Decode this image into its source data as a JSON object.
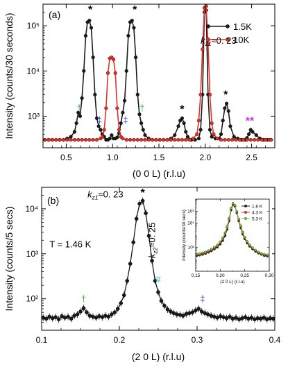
{
  "colors": {
    "black_series": "#1a1a1a",
    "red_series": "#e8312a",
    "green_series": "#7fd04a",
    "dagger_green": "#3cb44b",
    "dagger_blue": "#2b4fd8",
    "star_magenta": "#c23bd8",
    "hash_cyan": "#2ec4c4"
  },
  "chart_data": [
    {
      "type": "line",
      "panel_label": "(a)",
      "xlabel": "(0 0 L) (r.l.u)",
      "ylabel": "Intensity (counts/30 seconds)",
      "xlim": [
        0.25,
        2.75
      ],
      "ylim": [
        200,
        300000
      ],
      "yscale": "log",
      "xticks": [
        0.5,
        1.0,
        1.5,
        2.0,
        2.5
      ],
      "xtick_labels": [
        "0.5",
        "1.0",
        "1.5",
        "2.0",
        "2.5"
      ],
      "yticks": [
        1000,
        10000,
        100000
      ],
      "ytick_labels": [
        "10³",
        "10⁴",
        "10⁵"
      ],
      "legend_position": "top-right",
      "legend": [
        "1.5K",
        "10K"
      ],
      "series": [
        {
          "name": "1.5K",
          "color": "#1a1a1a",
          "x": [
            0.27,
            0.31,
            0.35,
            0.39,
            0.43,
            0.47,
            0.51,
            0.55,
            0.59,
            0.61,
            0.63,
            0.65,
            0.67,
            0.69,
            0.71,
            0.73,
            0.75,
            0.77,
            0.79,
            0.81,
            0.83,
            0.85,
            0.87,
            0.89,
            0.91,
            0.93,
            0.95,
            0.97,
            0.99,
            1.01,
            1.03,
            1.05,
            1.07,
            1.09,
            1.11,
            1.13,
            1.15,
            1.17,
            1.19,
            1.21,
            1.23,
            1.25,
            1.27,
            1.29,
            1.31,
            1.33,
            1.35,
            1.39,
            1.43,
            1.47,
            1.51,
            1.55,
            1.59,
            1.63,
            1.67,
            1.71,
            1.73,
            1.75,
            1.77,
            1.79,
            1.81,
            1.85,
            1.89,
            1.93,
            1.95,
            1.97,
            1.99,
            2.01,
            2.03,
            2.05,
            2.07,
            2.11,
            2.15,
            2.17,
            2.19,
            2.21,
            2.23,
            2.25,
            2.27,
            2.31,
            2.35,
            2.39,
            2.43,
            2.45,
            2.47,
            2.49,
            2.51,
            2.55,
            2.59,
            2.63,
            2.67,
            2.71
          ],
          "y": [
            300,
            300,
            300,
            300,
            300,
            300,
            320,
            350,
            450,
            700,
            1200,
            1000,
            2500,
            10000,
            60000,
            120000,
            130000,
            90000,
            20000,
            3000,
            900,
            600,
            500,
            400,
            350,
            300,
            300,
            320,
            380,
            320,
            320,
            340,
            420,
            700,
            1200,
            2200,
            10000,
            60000,
            120000,
            130000,
            90000,
            20000,
            3000,
            1100,
            700,
            500,
            380,
            320,
            300,
            300,
            300,
            300,
            300,
            320,
            380,
            600,
            800,
            900,
            700,
            450,
            350,
            300,
            300,
            320,
            500,
            3000,
            200000,
            220000,
            3000,
            500,
            350,
            320,
            320,
            400,
            800,
            1500,
            1900,
            1300,
            600,
            350,
            320,
            300,
            300,
            330,
            400,
            500,
            450,
            380,
            320,
            300,
            300,
            300
          ]
        },
        {
          "name": "10K",
          "color": "#e8312a",
          "x": [
            0.27,
            0.31,
            0.35,
            0.39,
            0.43,
            0.47,
            0.51,
            0.55,
            0.59,
            0.63,
            0.67,
            0.71,
            0.75,
            0.79,
            0.83,
            0.87,
            0.89,
            0.91,
            0.93,
            0.95,
            0.97,
            0.99,
            1.01,
            1.03,
            1.05,
            1.07,
            1.09,
            1.11,
            1.15,
            1.19,
            1.23,
            1.27,
            1.31,
            1.35,
            1.39,
            1.43,
            1.47,
            1.51,
            1.55,
            1.59,
            1.63,
            1.67,
            1.71,
            1.75,
            1.79,
            1.83,
            1.87,
            1.91,
            1.93,
            1.95,
            1.97,
            1.99,
            2.01,
            2.03,
            2.05,
            2.07,
            2.09,
            2.13,
            2.17,
            2.21,
            2.25,
            2.29,
            2.33,
            2.37,
            2.41,
            2.45,
            2.49,
            2.53,
            2.57,
            2.61,
            2.65,
            2.69,
            2.71
          ],
          "y": [
            300,
            300,
            300,
            300,
            300,
            300,
            300,
            300,
            300,
            300,
            300,
            300,
            300,
            300,
            300,
            320,
            350,
            500,
            1500,
            9000,
            19000,
            20000,
            18000,
            9000,
            1500,
            500,
            350,
            320,
            300,
            300,
            300,
            300,
            300,
            300,
            300,
            300,
            300,
            300,
            300,
            300,
            300,
            300,
            300,
            300,
            300,
            300,
            320,
            400,
            800,
            3000,
            30000,
            250000,
            270000,
            40000,
            3000,
            700,
            400,
            320,
            300,
            300,
            300,
            300,
            300,
            300,
            300,
            300,
            300,
            300,
            300,
            300,
            300,
            300,
            300
          ]
        }
      ],
      "annotations": [
        {
          "text": "k_z1≈0. 23",
          "x": 1.95,
          "y": 40000
        },
        {
          "text": "*",
          "x": 0.76,
          "y": 190000,
          "color": "#000000"
        },
        {
          "text": "*",
          "x": 1.24,
          "y": 190000,
          "color": "#000000"
        },
        {
          "text": "*",
          "x": 1.75,
          "y": 1200,
          "color": "#000000"
        },
        {
          "text": "*",
          "x": 2.22,
          "y": 2500,
          "color": "#000000"
        },
        {
          "text": "**",
          "x": 2.48,
          "y": 650,
          "color": "#c23bd8"
        },
        {
          "text": "†",
          "x": 0.64,
          "y": 1300,
          "color": "#3cb44b"
        },
        {
          "text": "†",
          "x": 1.32,
          "y": 1300,
          "color": "#3cb44b"
        },
        {
          "text": "‡",
          "x": 0.86,
          "y": 700,
          "color": "#2b4fd8"
        },
        {
          "text": "‡",
          "x": 1.14,
          "y": 700,
          "color": "#2b4fd8"
        }
      ]
    },
    {
      "type": "line",
      "panel_label": "(b)",
      "xlabel": "(2 0 L) (r.l.u)",
      "ylabel": "Intensity (counts/5 secs)",
      "xlim": [
        0.1,
        0.4
      ],
      "ylim": [
        20,
        30000
      ],
      "yscale": "log",
      "xticks": [
        0.1,
        0.2,
        0.3,
        0.4
      ],
      "xtick_labels": [
        "0.1",
        "0.2",
        "0.3",
        "0.4"
      ],
      "yticks": [
        100,
        1000,
        10000
      ],
      "ytick_labels": [
        "10²",
        "10³",
        "10⁴"
      ],
      "series": [
        {
          "name": "",
          "color": "#1a1a1a",
          "x": [
            0.102,
            0.106,
            0.11,
            0.114,
            0.118,
            0.122,
            0.126,
            0.13,
            0.134,
            0.138,
            0.142,
            0.146,
            0.15,
            0.154,
            0.158,
            0.162,
            0.166,
            0.17,
            0.174,
            0.178,
            0.182,
            0.186,
            0.19,
            0.194,
            0.198,
            0.202,
            0.206,
            0.21,
            0.214,
            0.218,
            0.222,
            0.226,
            0.23,
            0.234,
            0.238,
            0.242,
            0.246,
            0.25,
            0.254,
            0.258,
            0.262,
            0.266,
            0.27,
            0.274,
            0.278,
            0.282,
            0.286,
            0.29,
            0.294,
            0.298,
            0.302,
            0.306,
            0.31,
            0.314,
            0.318,
            0.322,
            0.326,
            0.33,
            0.334,
            0.338,
            0.342,
            0.346,
            0.35,
            0.354,
            0.358,
            0.362,
            0.366,
            0.37,
            0.374,
            0.378,
            0.382,
            0.386,
            0.39,
            0.394,
            0.398
          ],
          "y": [
            38,
            36,
            40,
            37,
            39,
            35,
            41,
            38,
            40,
            36,
            42,
            45,
            52,
            62,
            50,
            42,
            40,
            38,
            41,
            39,
            42,
            40,
            45,
            50,
            60,
            80,
            120,
            250,
            600,
            1800,
            6000,
            13000,
            15000,
            8000,
            2500,
            700,
            250,
            140,
            90,
            70,
            58,
            52,
            48,
            45,
            44,
            42,
            46,
            48,
            50,
            55,
            60,
            52,
            48,
            45,
            42,
            40,
            38,
            41,
            39,
            37,
            40,
            36,
            38,
            35,
            37,
            39,
            36,
            38,
            35,
            37,
            36,
            38,
            35,
            37,
            36
          ]
        }
      ],
      "annotations": [
        {
          "text": "k_z1≈0. 23",
          "x": 0.205,
          "y": 18000
        },
        {
          "text": "*",
          "x": 0.23,
          "y": 19000,
          "color": "#000000"
        },
        {
          "text": "k_z2≈0. 25",
          "x": 0.246,
          "y": 800
        },
        {
          "text": "T = 1.46 K",
          "x": 0.11,
          "y": 1400
        },
        {
          "text": "†",
          "x": 0.154,
          "y": 85,
          "color": "#3cb44b"
        },
        {
          "text": "#",
          "x": 0.25,
          "y": 230,
          "color": "#2ec4c4"
        },
        {
          "text": "‡",
          "x": 0.307,
          "y": 85,
          "color": "#2b4fd8"
        }
      ],
      "inset": {
        "type": "line",
        "xlabel": "(2 0 L) (r.l.u)",
        "ylabel": "Intensity (counts/30 secs)",
        "xlim": [
          0.15,
          0.3
        ],
        "ylim": [
          10,
          10000000
        ],
        "yscale": "log",
        "xticks": [
          0.15,
          0.2,
          0.25,
          0.3
        ],
        "xtick_labels": [
          "0,15",
          "0,20",
          "0,25",
          "0,30"
        ],
        "yticks": [
          1000,
          100000,
          1000000
        ],
        "ytick_labels": [
          "10³",
          "10⁵",
          "10⁶"
        ],
        "legend": [
          "1.8 K",
          "4.3 K",
          "5.3 K"
        ],
        "series": [
          {
            "name": "1.8 K",
            "color": "#1a1a1a",
            "x": [
              0.152,
              0.158,
              0.164,
              0.17,
              0.176,
              0.182,
              0.188,
              0.194,
              0.2,
              0.205,
              0.21,
              0.214,
              0.218,
              0.222,
              0.226,
              0.23,
              0.234,
              0.238,
              0.242,
              0.246,
              0.25,
              0.255,
              0.26,
              0.266,
              0.272,
              0.278,
              0.284,
              0.29,
              0.296
            ],
            "y": [
              200,
              220,
              250,
              300,
              380,
              500,
              700,
              1000,
              1800,
              3500,
              9000,
              30000,
              150000,
              1200000,
              3500000,
              2500000,
              700000,
              150000,
              40000,
              12000,
              5000,
              2200,
              1200,
              700,
              450,
              320,
              250,
              200,
              180
            ]
          },
          {
            "name": "4.3 K",
            "color": "#e8312a",
            "x": [
              0.152,
              0.158,
              0.164,
              0.17,
              0.176,
              0.182,
              0.188,
              0.194,
              0.2,
              0.205,
              0.21,
              0.214,
              0.218,
              0.222,
              0.226,
              0.23,
              0.234,
              0.238,
              0.242,
              0.246,
              0.25,
              0.255,
              0.26,
              0.266,
              0.272,
              0.278,
              0.284,
              0.29,
              0.296
            ],
            "y": [
              220,
              240,
              280,
              330,
              420,
              560,
              800,
              1200,
              2200,
              4500,
              12000,
              40000,
              200000,
              1500000,
              4000000,
              2800000,
              800000,
              180000,
              50000,
              15000,
              6000,
              2600,
              1400,
              800,
              500,
              350,
              270,
              220,
              200
            ]
          },
          {
            "name": "5.3 K",
            "color": "#7fd04a",
            "x": [
              0.152,
              0.158,
              0.164,
              0.17,
              0.176,
              0.182,
              0.188,
              0.194,
              0.2,
              0.205,
              0.21,
              0.214,
              0.218,
              0.222,
              0.226,
              0.23,
              0.234,
              0.238,
              0.242,
              0.246,
              0.25,
              0.255,
              0.26,
              0.266,
              0.272,
              0.278,
              0.284,
              0.29,
              0.296
            ],
            "y": [
              260,
              290,
              340,
              400,
              520,
              700,
              1000,
              1500,
              2800,
              6000,
              16000,
              55000,
              260000,
              1800000,
              4500000,
              3000000,
              900000,
              220000,
              60000,
              18000,
              7000,
              3000,
              1600,
              900,
              560,
              400,
              300,
              250,
              230
            ]
          }
        ]
      }
    }
  ]
}
